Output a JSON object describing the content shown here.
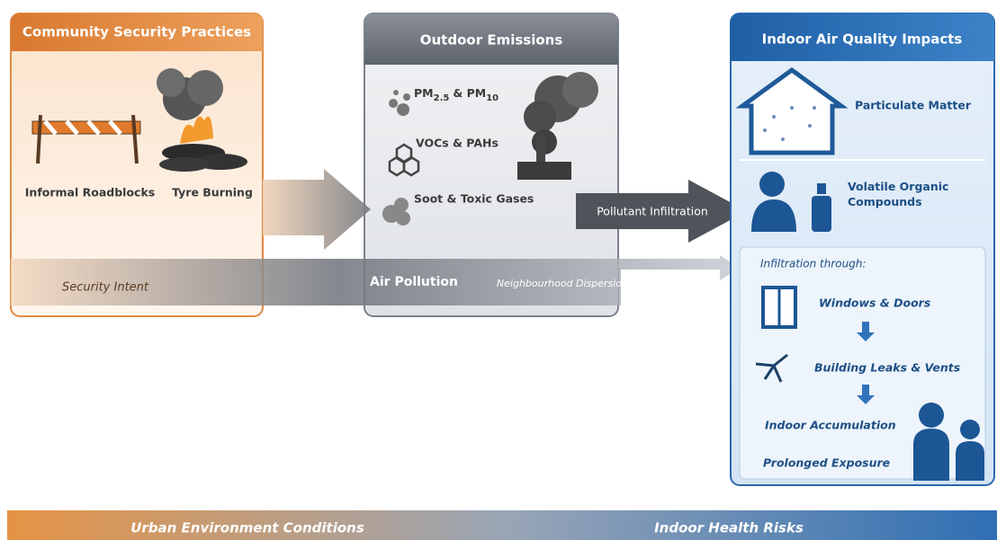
{
  "community": {
    "title": "Community Security Practices",
    "roadblocks": "Informal Roadblocks",
    "tyre_burning": "Tyre Burning",
    "intent": "Security Intent"
  },
  "emissions": {
    "title": "Outdoor Emissions",
    "pm": [
      "PM",
      "2.5",
      "& PM",
      "10"
    ],
    "vocs": "VOCs & PAHs",
    "soot": "Soot & Toxic Gases"
  },
  "flows": {
    "infiltration": "Pollutant Infiltration",
    "air_pollution": "Air Pollution",
    "dispersion": "Neighbourhood Dispersion"
  },
  "indoor": {
    "title": "Indoor Air Quality Impacts",
    "particulate": "Particulate Matter",
    "voc": [
      "Volatile Organic",
      "Compounds"
    ],
    "infiltration_through": "Infiltration through:",
    "windows": "Windows & Doors",
    "leaks": "Building Leaks & Vents",
    "accumulation": "Indoor Accumulation",
    "exposure": "Prolonged Exposure"
  },
  "footer": {
    "left": "Urban Environment Conditions",
    "right": "Indoor Health Risks"
  }
}
